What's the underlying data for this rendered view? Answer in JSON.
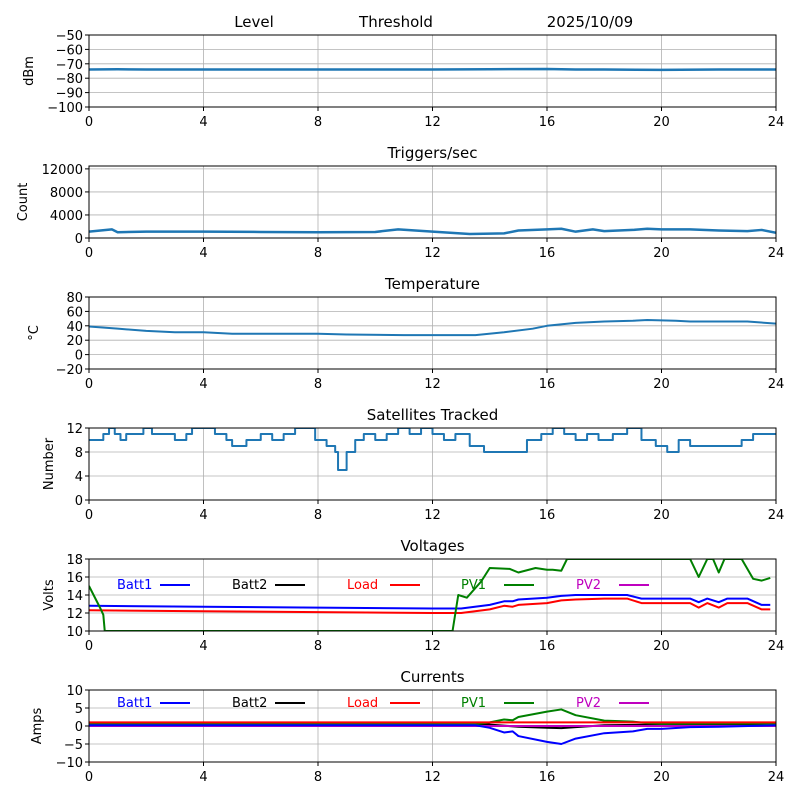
{
  "header": {
    "level_label": "Level",
    "threshold_label": "Threshold",
    "date": "2025/10/09"
  },
  "colors": {
    "series_default": "#1f77b4",
    "grid": "#b0b0b0",
    "Batt1": "#0000ff",
    "Batt2": "#000000",
    "Load": "#ff0000",
    "PV1": "#008000",
    "PV2": "#bf00bf"
  },
  "chart_data": [
    {
      "id": "level",
      "type": "line",
      "title": "",
      "ylabel": "dBm",
      "xlim": [
        0,
        24
      ],
      "ylim": [
        -100,
        -50
      ],
      "xticks": [
        "0",
        "4",
        "8",
        "12",
        "16",
        "20",
        "24"
      ],
      "yticks": [
        "-50",
        "-60",
        "-70",
        "-80",
        "-90",
        "-100"
      ],
      "ytick_values": [
        -50,
        -60,
        -70,
        -80,
        -90,
        -100
      ],
      "grid": true,
      "series": [
        {
          "name": "Level",
          "x": [
            0,
            1,
            2,
            4,
            8,
            12,
            14,
            16,
            17,
            18,
            20,
            22,
            24
          ],
          "values": [
            -74,
            -73.8,
            -74,
            -74,
            -74,
            -74,
            -73.8,
            -73.6,
            -74,
            -74,
            -74.2,
            -74,
            -74
          ]
        }
      ]
    },
    {
      "id": "triggers",
      "type": "line",
      "title": "Triggers/sec",
      "ylabel": "Count",
      "xlim": [
        0,
        24
      ],
      "ylim": [
        0,
        12500
      ],
      "xticks": [
        "0",
        "4",
        "8",
        "12",
        "16",
        "20",
        "24"
      ],
      "yticks": [
        "0",
        "4000",
        "8000",
        "12000"
      ],
      "ytick_values": [
        0,
        4000,
        8000,
        12000
      ],
      "grid": true,
      "series": [
        {
          "name": "Triggers",
          "x": [
            0,
            0.8,
            1,
            2,
            4,
            6,
            8,
            10,
            10.8,
            12,
            13.3,
            14.5,
            15,
            16,
            16.5,
            17,
            17.6,
            18,
            19,
            19.5,
            20,
            21,
            22,
            23,
            23.5,
            24
          ],
          "values": [
            1100,
            1500,
            1000,
            1100,
            1100,
            1050,
            1000,
            1050,
            1500,
            1100,
            700,
            800,
            1300,
            1500,
            1600,
            1100,
            1500,
            1200,
            1400,
            1600,
            1500,
            1500,
            1300,
            1200,
            1400,
            900
          ]
        }
      ]
    },
    {
      "id": "temperature",
      "type": "line",
      "title": "Temperature",
      "ylabel": "°C",
      "xlim": [
        0,
        24
      ],
      "ylim": [
        -20,
        80
      ],
      "xticks": [
        "0",
        "4",
        "8",
        "12",
        "16",
        "20",
        "24"
      ],
      "yticks": [
        "80",
        "60",
        "40",
        "20",
        "0",
        "-20"
      ],
      "ytick_values": [
        80,
        60,
        40,
        20,
        0,
        -20
      ],
      "grid": true,
      "series": [
        {
          "name": "Temperature",
          "x": [
            0,
            1,
            2,
            3,
            4,
            5,
            6,
            8,
            9,
            11,
            12,
            13.5,
            14.5,
            15.5,
            16,
            17,
            18,
            19,
            19.5,
            20.5,
            21,
            22,
            23,
            24
          ],
          "values": [
            39,
            36,
            33,
            31,
            31,
            29,
            29,
            29,
            28,
            27,
            27,
            27,
            31,
            36,
            40,
            44,
            46,
            47,
            48,
            47,
            46,
            46,
            46,
            43
          ]
        }
      ]
    },
    {
      "id": "satellites",
      "type": "line",
      "title": "Satellites Tracked",
      "ylabel": "Number",
      "xlim": [
        0,
        24
      ],
      "ylim": [
        0,
        12
      ],
      "xticks": [
        "0",
        "4",
        "8",
        "12",
        "16",
        "20",
        "24"
      ],
      "yticks": [
        "12",
        "8",
        "4",
        "0"
      ],
      "ytick_values": [
        12,
        8,
        4,
        0
      ],
      "grid": true,
      "series": [
        {
          "name": "Satellites",
          "x": [
            0,
            0.5,
            0.7,
            0.9,
            1.1,
            1.3,
            1.6,
            1.9,
            2.2,
            3.0,
            3.4,
            3.6,
            4.0,
            4.4,
            4.8,
            5.0,
            5.5,
            6.0,
            6.4,
            6.8,
            7.2,
            7.6,
            7.9,
            8.3,
            8.6,
            8.7,
            9.0,
            9.3,
            9.6,
            10.0,
            10.4,
            10.8,
            11.2,
            11.6,
            12.0,
            12.4,
            12.8,
            13.3,
            13.8,
            14.3,
            14.8,
            15.3,
            15.8,
            16.2,
            16.6,
            17.0,
            17.4,
            17.8,
            18.3,
            18.8,
            19.3,
            19.8,
            20.2,
            20.6,
            21.0,
            21.5,
            22.0,
            22.4,
            22.8,
            23.2,
            23.6,
            24.0
          ],
          "values": [
            10,
            11,
            12,
            11,
            10,
            11,
            11,
            12,
            11,
            10,
            11,
            12,
            12,
            11,
            10,
            9,
            10,
            11,
            10,
            11,
            12,
            12,
            10,
            9,
            8,
            5,
            8,
            10,
            11,
            10,
            11,
            12,
            11,
            12,
            11,
            10,
            11,
            9,
            8,
            8,
            8,
            10,
            11,
            12,
            11,
            10,
            11,
            10,
            11,
            12,
            10,
            9,
            8,
            10,
            9,
            9,
            9,
            9,
            10,
            11,
            11,
            11
          ]
        }
      ]
    },
    {
      "id": "voltages",
      "type": "line",
      "title": "Voltages",
      "ylabel": "Volts",
      "xlim": [
        0,
        24
      ],
      "ylim": [
        10,
        18
      ],
      "xticks": [
        "0",
        "4",
        "8",
        "12",
        "16",
        "20",
        "24"
      ],
      "yticks": [
        "18",
        "16",
        "14",
        "12",
        "10"
      ],
      "ytick_values": [
        18,
        16,
        14,
        12,
        10
      ],
      "grid": true,
      "legend": [
        "Batt1",
        "Batt2",
        "Load",
        "PV1",
        "PV2"
      ],
      "series": [
        {
          "name": "Batt1",
          "x": [
            0,
            4,
            8,
            12,
            13,
            14,
            14.5,
            14.8,
            15,
            16,
            16.5,
            17,
            18,
            18.8,
            19.3,
            20,
            21,
            21.3,
            21.6,
            22,
            22.3,
            22.6,
            23,
            23.5,
            23.8
          ],
          "values": [
            12.8,
            12.7,
            12.6,
            12.5,
            12.5,
            12.9,
            13.3,
            13.3,
            13.5,
            13.7,
            13.9,
            14.0,
            14.0,
            14.0,
            13.6,
            13.6,
            13.6,
            13.2,
            13.6,
            13.2,
            13.6,
            13.6,
            13.6,
            12.9,
            12.9
          ]
        },
        {
          "name": "Load",
          "x": [
            0,
            4,
            8,
            12,
            13,
            14,
            14.5,
            14.8,
            15,
            16,
            16.5,
            17,
            18,
            18.8,
            19.3,
            20,
            21,
            21.3,
            21.6,
            22,
            22.3,
            22.6,
            23,
            23.5,
            23.8
          ],
          "values": [
            12.3,
            12.2,
            12.1,
            12.0,
            12.0,
            12.4,
            12.8,
            12.7,
            12.9,
            13.1,
            13.4,
            13.5,
            13.6,
            13.6,
            13.1,
            13.1,
            13.1,
            12.6,
            13.1,
            12.6,
            13.1,
            13.1,
            13.1,
            12.4,
            12.4
          ]
        },
        {
          "name": "PV1",
          "x": [
            0,
            0.4,
            0.5,
            0.55,
            12.7,
            12.9,
            13.2,
            13.7,
            14.0,
            14.7,
            15.0,
            15.6,
            16.0,
            16.2,
            16.5,
            16.7,
            21.0,
            21.3,
            21.6,
            21.8,
            22.0,
            22.2,
            22.8,
            23.2,
            23.5,
            23.8
          ],
          "values": [
            15.0,
            12.5,
            11.8,
            10.0,
            10.0,
            14.0,
            13.7,
            15.5,
            17.0,
            16.9,
            16.5,
            17.0,
            16.8,
            16.8,
            16.7,
            18.0,
            18.0,
            16.0,
            18.0,
            18.0,
            16.5,
            18.0,
            18.0,
            15.8,
            15.6,
            15.9
          ]
        }
      ]
    },
    {
      "id": "currents",
      "type": "line",
      "title": "Currents",
      "ylabel": "Amps",
      "xlim": [
        0,
        24
      ],
      "ylim": [
        -10,
        10
      ],
      "xticks": [
        "0",
        "4",
        "8",
        "12",
        "16",
        "20",
        "24"
      ],
      "yticks": [
        "10",
        "5",
        "0",
        "-5",
        "-10"
      ],
      "ytick_values": [
        10,
        5,
        0,
        -5,
        -10
      ],
      "grid": true,
      "legend": [
        "Batt1",
        "Batt2",
        "Load",
        "PV1",
        "PV2"
      ],
      "series": [
        {
          "name": "Batt2",
          "x": [
            0,
            4,
            8,
            12,
            14,
            15,
            16,
            16.5,
            17,
            18,
            20,
            24
          ],
          "values": [
            0.5,
            0.5,
            0.5,
            0.5,
            0.4,
            -0.2,
            -0.5,
            -0.6,
            -0.3,
            0.2,
            0.4,
            0.5
          ]
        },
        {
          "name": "PV2",
          "x": [
            0,
            24
          ],
          "values": [
            0,
            0
          ]
        },
        {
          "name": "PV1",
          "x": [
            0,
            12,
            13.5,
            14.0,
            14.5,
            14.8,
            15.0,
            16.0,
            16.5,
            17.0,
            18.0,
            19.0,
            19.5,
            20.0,
            24.0
          ],
          "values": [
            0.5,
            0.5,
            0.5,
            1.0,
            1.8,
            1.6,
            2.5,
            4.0,
            4.6,
            3.0,
            1.5,
            1.2,
            0.8,
            0.6,
            0.7
          ]
        },
        {
          "name": "Batt1",
          "x": [
            0,
            12,
            13.5,
            14.0,
            14.5,
            14.8,
            15.0,
            16.0,
            16.5,
            17.0,
            18.0,
            19.0,
            19.5,
            20.0,
            21.0,
            22.0,
            24.0
          ],
          "values": [
            0.2,
            0.2,
            0.2,
            -0.5,
            -1.8,
            -1.5,
            -2.8,
            -4.4,
            -5.0,
            -3.5,
            -2.0,
            -1.5,
            -0.8,
            -0.8,
            -0.3,
            -0.2,
            0.2
          ]
        },
        {
          "name": "Load",
          "x": [
            0,
            24
          ],
          "values": [
            1.0,
            1.0
          ]
        }
      ]
    }
  ]
}
